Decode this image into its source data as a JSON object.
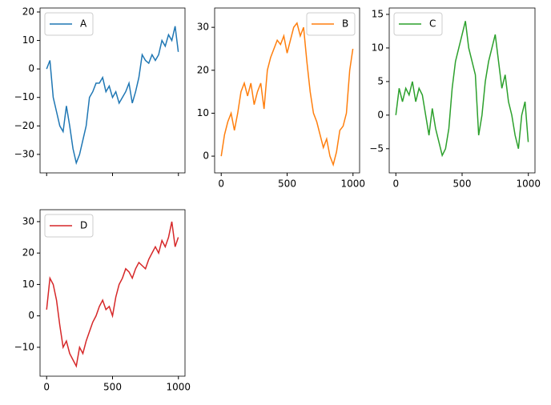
{
  "chart_data": [
    {
      "type": "line",
      "legend": "upper left",
      "x": [
        0,
        25,
        50,
        75,
        100,
        125,
        150,
        175,
        200,
        225,
        250,
        275,
        300,
        325,
        350,
        375,
        400,
        425,
        450,
        475,
        500,
        525,
        550,
        575,
        600,
        625,
        650,
        675,
        700,
        725,
        750,
        775,
        800,
        825,
        850,
        875,
        900,
        925,
        950,
        975,
        999
      ],
      "series": [
        {
          "name": "A",
          "color": "#1f77b4",
          "values": [
            0,
            3,
            -10,
            -15,
            -20,
            -22,
            -13,
            -20,
            -28,
            -33,
            -30,
            -25,
            -20,
            -10,
            -8,
            -5,
            -5,
            -3,
            -8,
            -6,
            -10,
            -8,
            -12,
            -10,
            -8,
            -5,
            -12,
            -8,
            -3,
            5,
            3,
            2,
            5,
            3,
            5,
            10,
            8,
            12,
            10,
            15,
            6
          ]
        }
      ],
      "xlim": [
        -50,
        1050
      ],
      "xticks": [
        0,
        500,
        1000
      ],
      "xticklabels": false,
      "ylim": [
        -36.5,
        21.4
      ],
      "yticks": [
        {
          "value": -30,
          "label": "−30"
        },
        {
          "value": -20,
          "label": "−20"
        },
        {
          "value": -10,
          "label": "−10"
        },
        0,
        10,
        20
      ]
    },
    {
      "type": "line",
      "legend": "upper right",
      "x": [
        0,
        25,
        50,
        75,
        100,
        125,
        150,
        175,
        200,
        225,
        250,
        275,
        300,
        325,
        350,
        375,
        400,
        425,
        450,
        475,
        500,
        525,
        550,
        575,
        600,
        625,
        650,
        675,
        700,
        725,
        750,
        775,
        800,
        825,
        850,
        875,
        900,
        925,
        950,
        975,
        999
      ],
      "series": [
        {
          "name": "B",
          "color": "#ff7f0e",
          "values": [
            0,
            5,
            8,
            10,
            6,
            10,
            15,
            17,
            14,
            17,
            12,
            15,
            17,
            11,
            20,
            23,
            25,
            27,
            26,
            28,
            24,
            27,
            30,
            31,
            28,
            30,
            22,
            15,
            10,
            8,
            5,
            2,
            4,
            0,
            -2,
            1,
            6,
            7,
            10,
            20,
            25
          ]
        }
      ],
      "xlim": [
        -50,
        1050
      ],
      "xticks": [
        0,
        500,
        1000
      ],
      "xticklabels": true,
      "ylim": [
        -3.9,
        34.5
      ],
      "yticks": [
        0,
        10,
        20,
        30
      ]
    },
    {
      "type": "line",
      "legend": "upper left",
      "x": [
        0,
        25,
        50,
        75,
        100,
        125,
        150,
        175,
        200,
        225,
        250,
        275,
        300,
        325,
        350,
        375,
        400,
        425,
        450,
        475,
        500,
        525,
        550,
        575,
        600,
        625,
        650,
        675,
        700,
        725,
        750,
        775,
        800,
        825,
        850,
        875,
        900,
        925,
        950,
        975,
        999
      ],
      "series": [
        {
          "name": "C",
          "color": "#2ca02c",
          "values": [
            0,
            4,
            2,
            4,
            3,
            5,
            2,
            4,
            3,
            0,
            -3,
            1,
            -2,
            -4,
            -6,
            -5,
            -2,
            4,
            8,
            10,
            12,
            14,
            10,
            8,
            6,
            -3,
            0,
            5,
            8,
            10,
            12,
            8,
            4,
            6,
            2,
            0,
            -3,
            -5,
            0,
            2,
            -4
          ]
        }
      ],
      "xlim": [
        -50,
        1050
      ],
      "xticks": [
        0,
        500,
        1000
      ],
      "xticklabels": true,
      "ylim": [
        -8.6,
        15.95
      ],
      "yticks": [
        {
          "value": -5,
          "label": "−5"
        },
        0,
        5,
        10,
        15
      ]
    },
    {
      "type": "line",
      "legend": "upper left",
      "x": [
        0,
        25,
        50,
        75,
        100,
        125,
        150,
        175,
        200,
        225,
        250,
        275,
        300,
        325,
        350,
        375,
        400,
        425,
        450,
        475,
        500,
        525,
        550,
        575,
        600,
        625,
        650,
        675,
        700,
        725,
        750,
        775,
        800,
        825,
        850,
        875,
        900,
        925,
        950,
        975,
        999
      ],
      "series": [
        {
          "name": "D",
          "color": "#d62728",
          "values": [
            2,
            12,
            10,
            5,
            -3,
            -10,
            -8,
            -12,
            -14,
            -16,
            -10,
            -12,
            -8,
            -5,
            -2,
            0,
            3,
            5,
            2,
            3,
            0,
            6,
            10,
            12,
            15,
            14,
            12,
            15,
            17,
            16,
            15,
            18,
            20,
            22,
            20,
            24,
            22,
            25,
            30,
            22,
            25
          ]
        }
      ],
      "xlim": [
        -50,
        1050
      ],
      "xticks": [
        0,
        500,
        1000
      ],
      "xticklabels": true,
      "ylim": [
        -19.2,
        33.8
      ],
      "yticks": [
        {
          "value": -10,
          "label": "−10"
        },
        0,
        10,
        20,
        30
      ]
    }
  ]
}
